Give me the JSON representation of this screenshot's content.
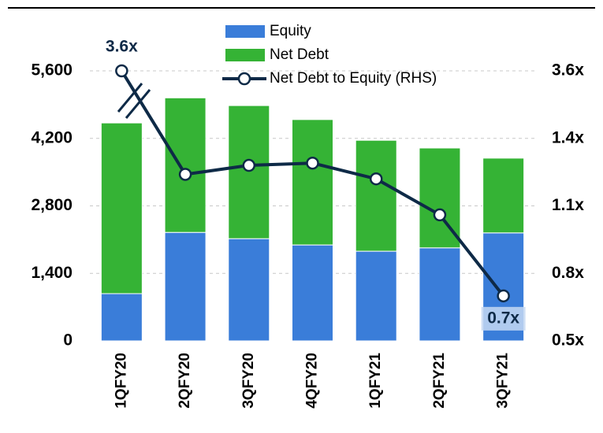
{
  "chart_data": {
    "type": "bar",
    "categories": [
      "1QFY20",
      "2QFY20",
      "3QFY20",
      "4QFY20",
      "1QFY21",
      "2QFY21",
      "3QFY21"
    ],
    "series": [
      {
        "name": "Equity",
        "color": "#3a7dd9",
        "values": [
          980,
          2250,
          2120,
          1990,
          1860,
          1930,
          2240
        ]
      },
      {
        "name": "Net Debt",
        "color": "#35b335",
        "values": [
          3540,
          2790,
          2760,
          2600,
          2300,
          2070,
          1550
        ]
      },
      {
        "name": "Net Debt to Equity (RHS)",
        "color": "#0e2a47",
        "axis": "y2",
        "type": "line",
        "values": [
          3.6,
          1.24,
          1.28,
          1.29,
          1.22,
          1.06,
          0.7
        ],
        "value_labels": [
          "3.6x",
          null,
          null,
          null,
          null,
          null,
          "0.7x"
        ]
      }
    ],
    "ylim": [
      0,
      5600
    ],
    "yticks": [
      0,
      {
        "value": 1400,
        "label": "1,400"
      },
      {
        "value": 2800,
        "label": "2,800"
      },
      {
        "value": 4200,
        "label": "4,200"
      },
      {
        "value": 5600,
        "label": "5,600"
      }
    ],
    "y2lim": [
      0.5,
      3.6
    ],
    "y2ticks": [
      {
        "value": 0.5,
        "label": "0.5x"
      },
      {
        "value": 0.8,
        "label": "0.8x"
      },
      {
        "value": 1.1,
        "label": "1.1x"
      },
      {
        "value": 1.4,
        "label": "1.4x"
      },
      {
        "value": 3.6,
        "label": "3.6x"
      }
    ],
    "grid": true,
    "legend": "top"
  }
}
